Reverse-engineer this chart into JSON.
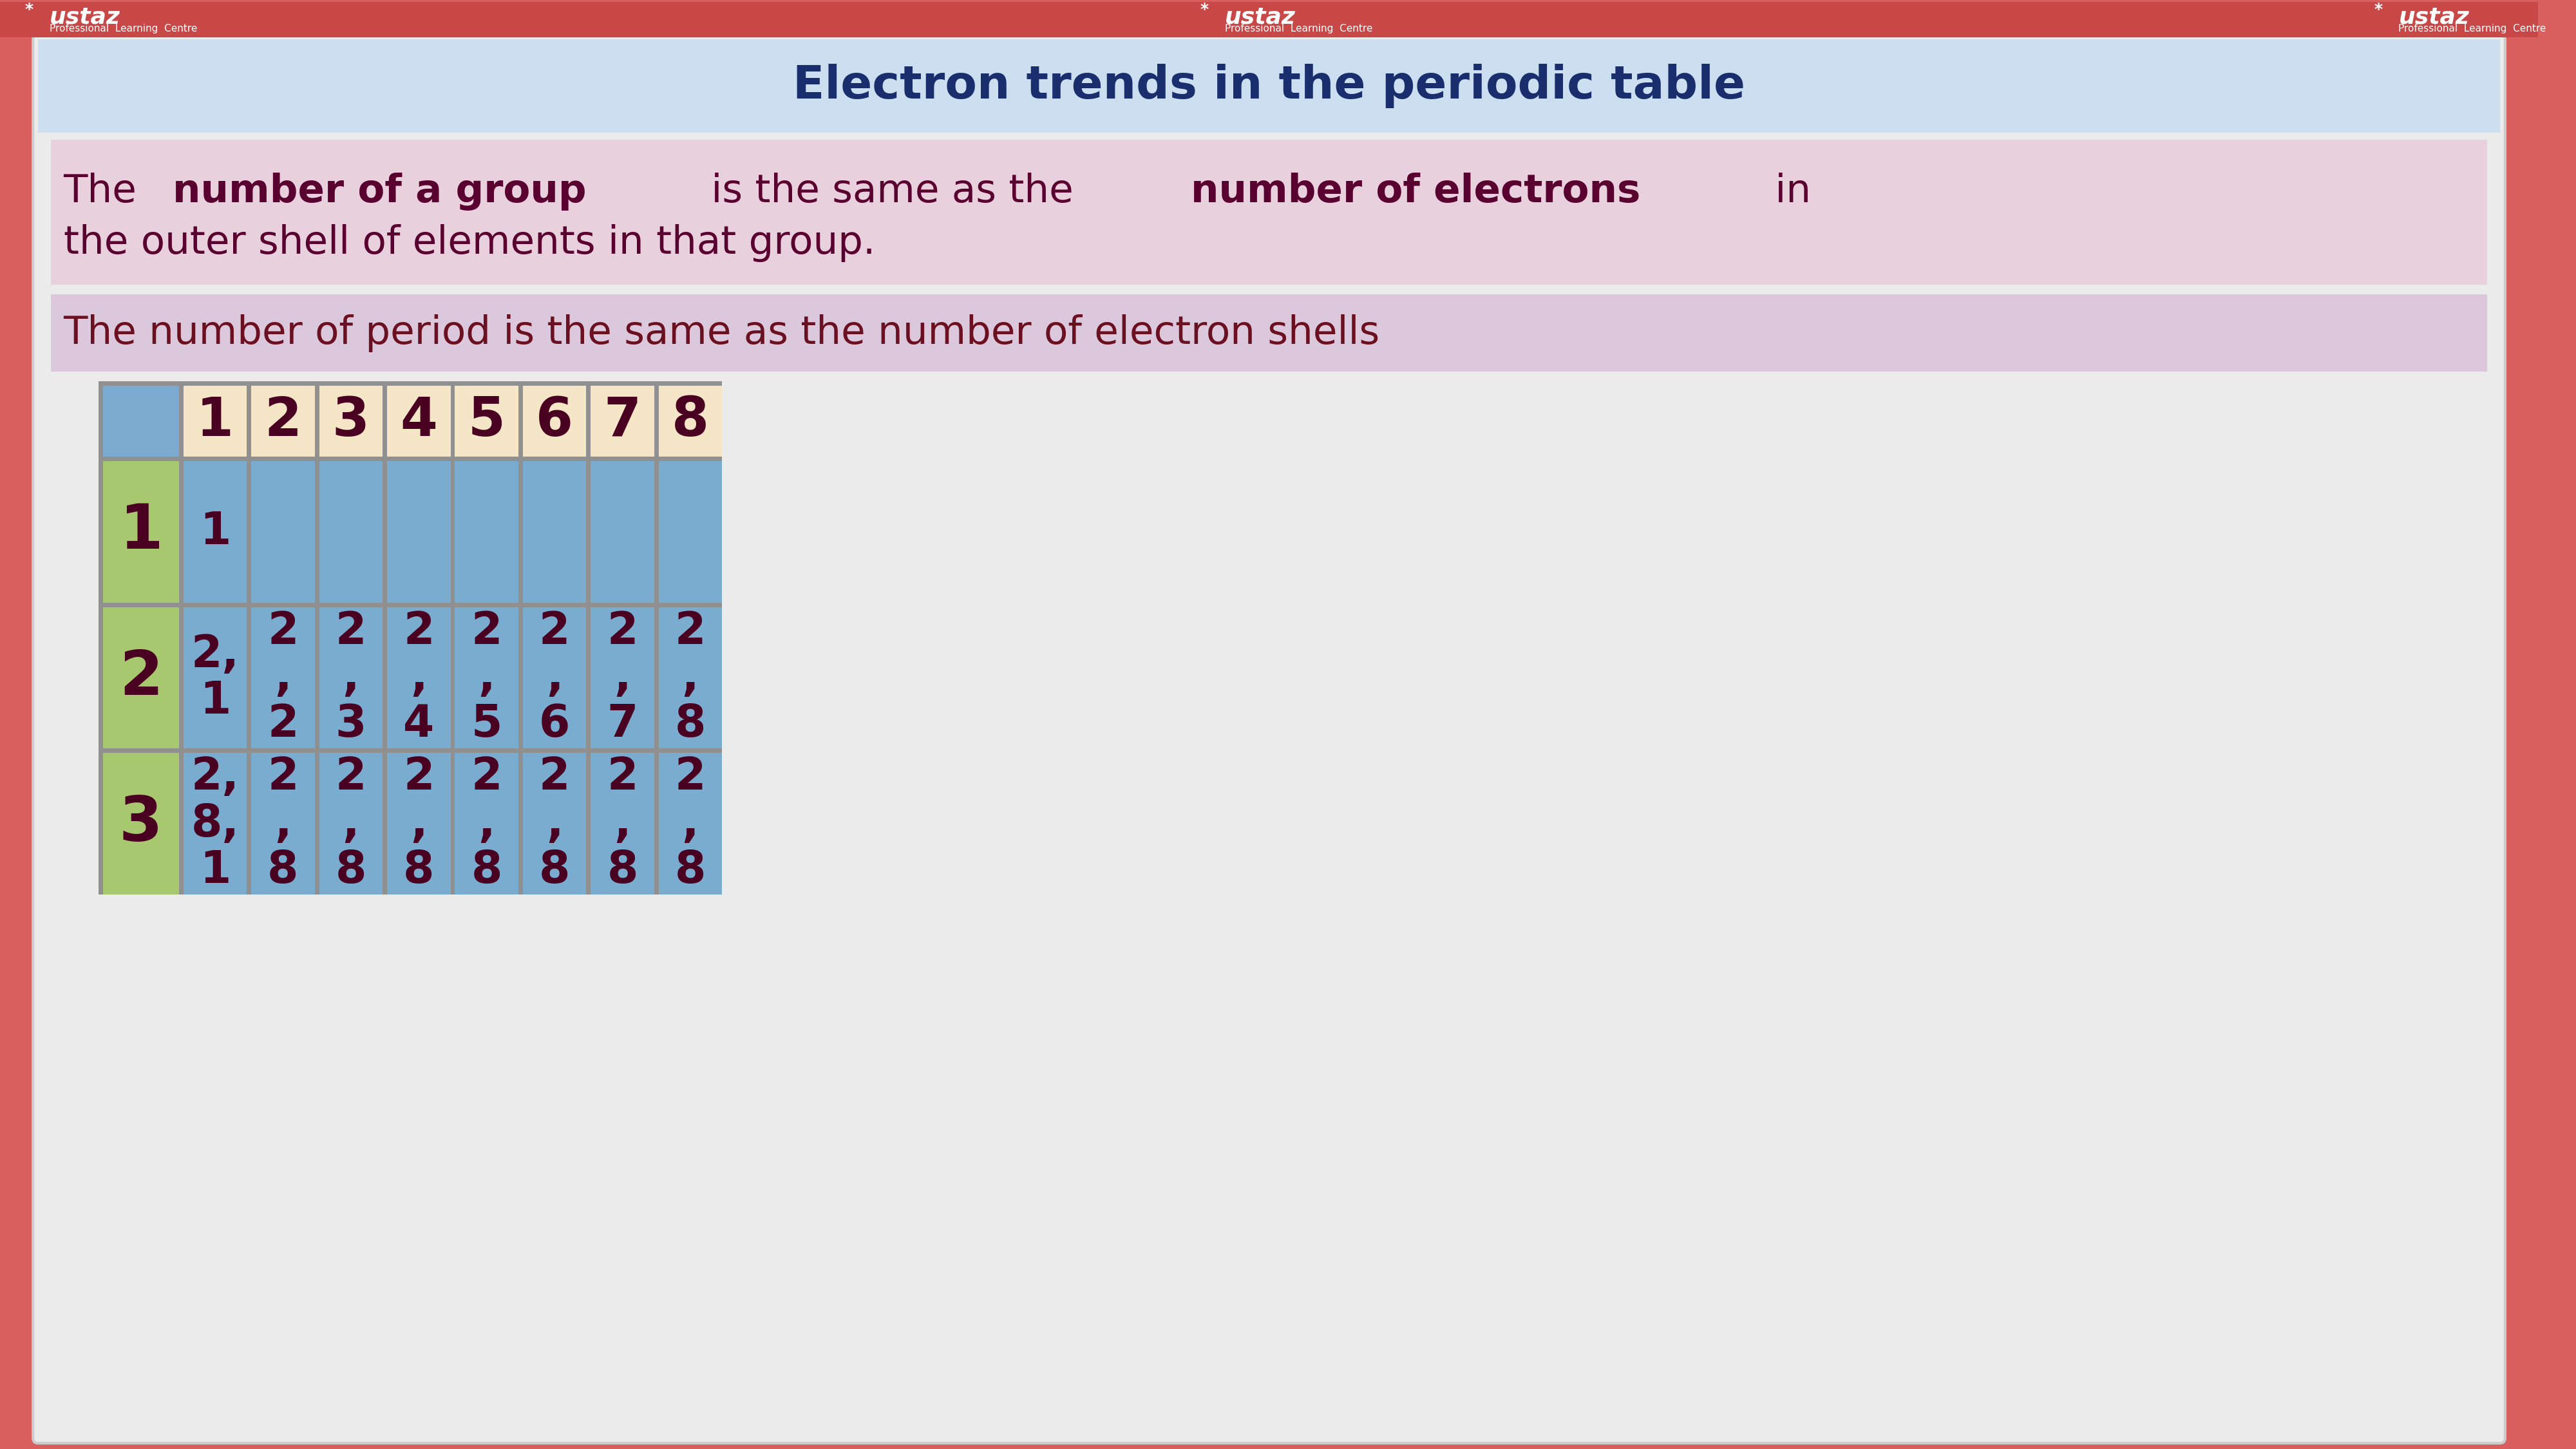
{
  "bg_color": "#d95f5f",
  "slide_bg": "#ebebeb",
  "title_text": "Electron trends in the periodic table",
  "title_bg": "#ccdff0",
  "title_color": "#1a2e6e",
  "box1_bg": "#e8d0dc",
  "box1_color": "#5a0030",
  "box2_bg": "#dcc8dc",
  "box2_text": "The number of period is the same as the number of electron shells",
  "box2_color": "#6b1020",
  "table_header_bg": "#f5e6c8",
  "table_row_bg": "#7aaccf",
  "table_period_bg": "#a8c870",
  "table_corner_bg": "#7aaacf",
  "table_border_bg": "#909090",
  "table_text_color": "#4a0020",
  "header_cols": [
    "1",
    "2",
    "3",
    "4",
    "5",
    "6",
    "7",
    "8"
  ],
  "period_rows": [
    "1",
    "2",
    "3"
  ],
  "table_data": [
    [
      "1",
      "",
      "",
      "",
      "",
      "",
      "",
      ""
    ],
    [
      "2,\n1",
      "2\n,\n2",
      "2\n,\n3",
      "2\n,\n4",
      "2\n,\n5",
      "2\n,\n6",
      "2\n,\n7",
      "2\n,\n8"
    ],
    [
      "2,\n8,\n1",
      "2\n,\n8",
      "2\n,\n8",
      "2\n,\n8",
      "2\n,\n8",
      "2\n,\n8",
      "2\n,\n8",
      "2\n,\n8"
    ]
  ],
  "header_bar_color": "#c84848",
  "logo_color": "#ffffff"
}
